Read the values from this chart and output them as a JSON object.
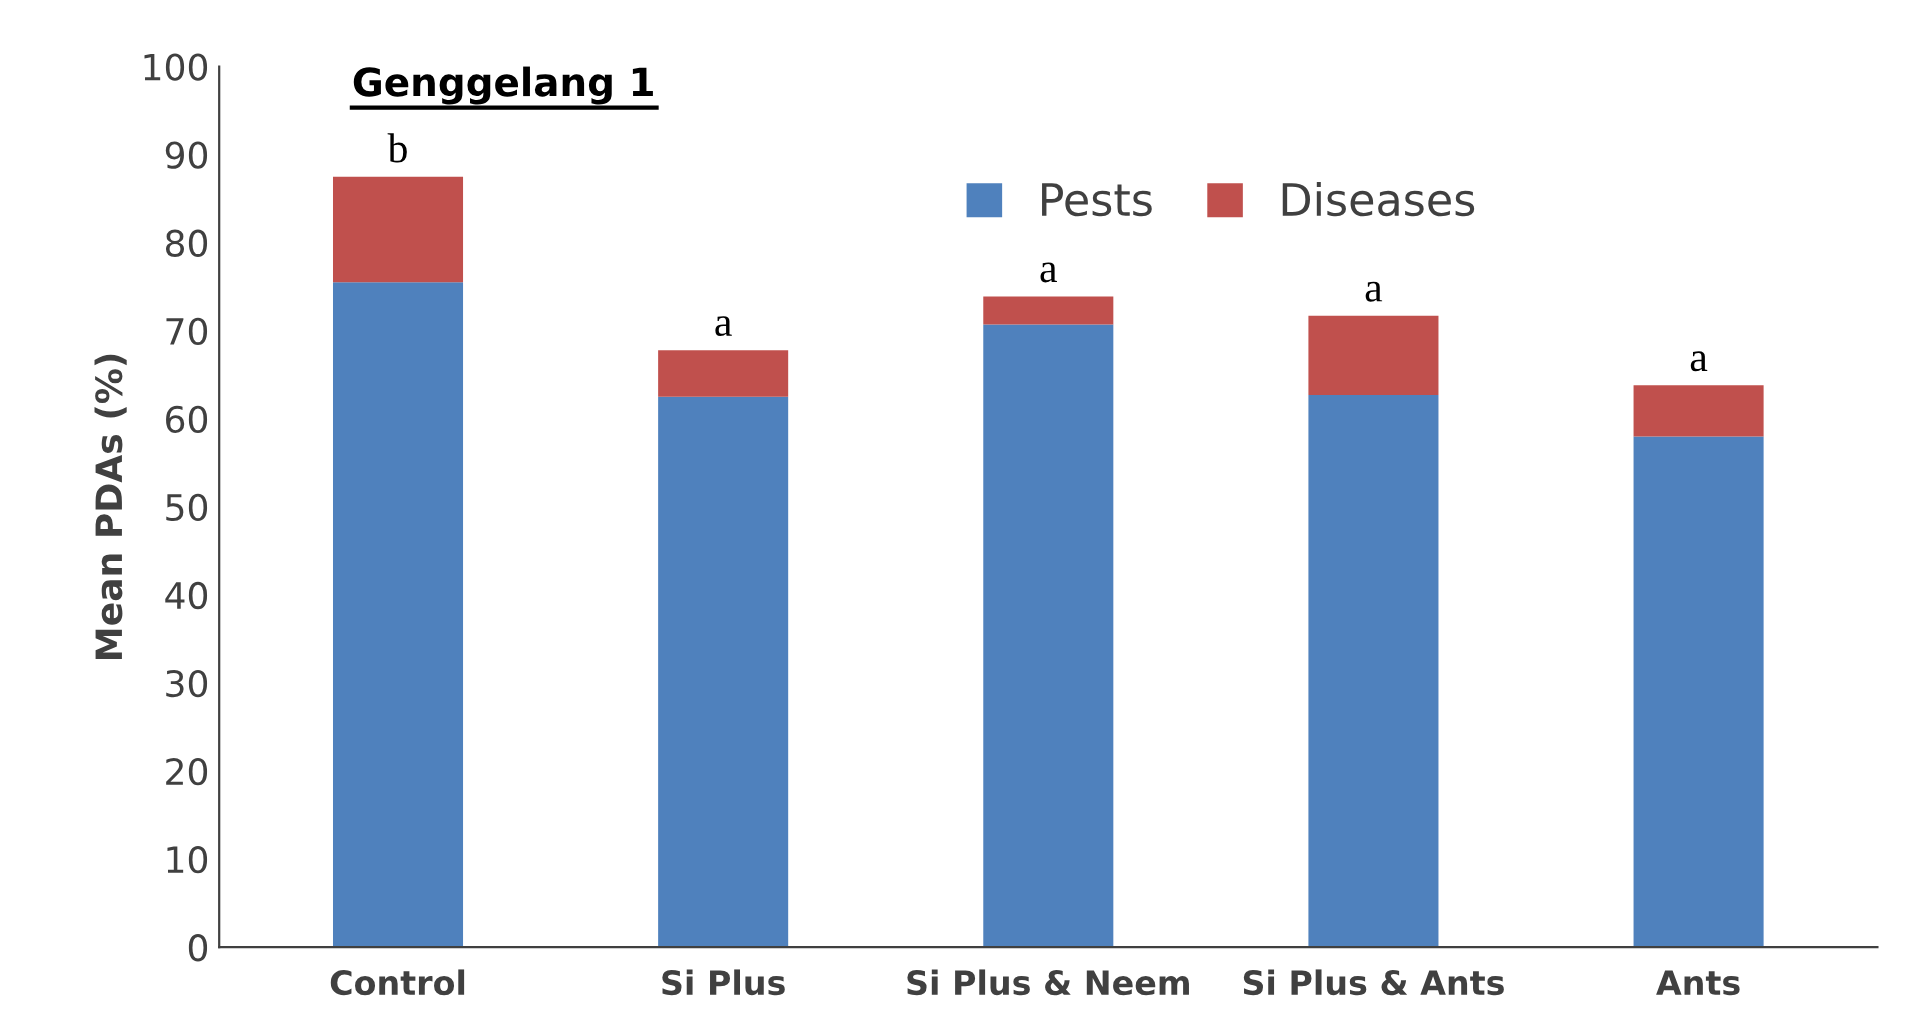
{
  "chart_data": {
    "type": "bar",
    "title": "Genggelang 1",
    "ylabel": "Mean PDAs (%)",
    "stacked": true,
    "categories": [
      "Control",
      "Si Plus",
      "Si Plus & Neem",
      "Si Plus & Ants",
      "Ants"
    ],
    "series": [
      {
        "name": "Pests",
        "color": "#4f81bd",
        "values": [
          75.5,
          62.5,
          70.7,
          62.7,
          58
        ]
      },
      {
        "name": "Diseases",
        "color": "#c0504d",
        "values": [
          12,
          5.3,
          3.2,
          9,
          5.8
        ]
      }
    ],
    "annotations": [
      {
        "text": "b",
        "x": "Control",
        "y": 87.5
      },
      {
        "text": "a",
        "x": "Si Plus",
        "y": 67.8
      },
      {
        "text": "a",
        "x": "Si Plus & Neem",
        "y": 73.9
      },
      {
        "text": "a",
        "x": "Si Plus & Ants",
        "y": 71.7
      },
      {
        "text": "a",
        "x": "Ants",
        "y": 63.8
      }
    ],
    "ylim": [
      0,
      100
    ],
    "yticks": [
      0,
      10,
      20,
      30,
      40,
      50,
      60,
      70,
      80,
      90,
      100
    ],
    "grid": false,
    "legend": "top right"
  }
}
